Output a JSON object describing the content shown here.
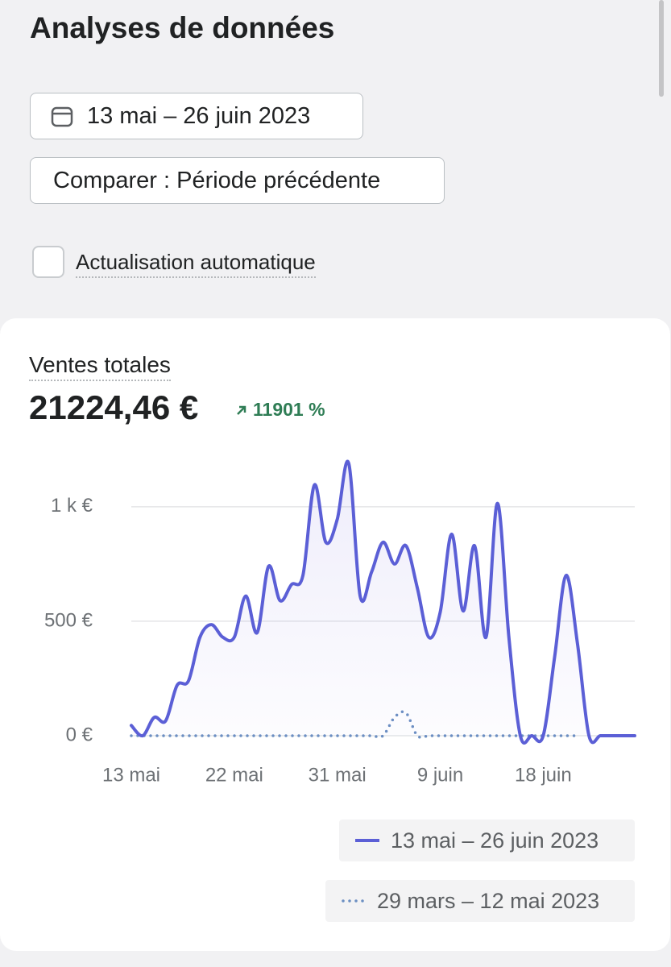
{
  "header": {
    "title": "Analyses de données"
  },
  "filters": {
    "date_range": "13 mai – 26 juin 2023",
    "compare": "Comparer : Période précédente",
    "auto_refresh": "Actualisation automatique"
  },
  "card": {
    "metric_label": "Ventes totales",
    "metric_value": "21224,46 €",
    "change": "11901 %"
  },
  "chart_data": {
    "type": "line",
    "categories": [
      "13 mai",
      null,
      null,
      null,
      null,
      null,
      null,
      null,
      null,
      "22 mai",
      null,
      null,
      null,
      null,
      null,
      null,
      null,
      null,
      "31 mai",
      null,
      null,
      null,
      null,
      null,
      null,
      null,
      null,
      "9 juin",
      null,
      null,
      null,
      null,
      null,
      null,
      null,
      null,
      "18 juin",
      null,
      null,
      null,
      null,
      null,
      null,
      null,
      null
    ],
    "series": [
      {
        "name": "13 mai – 26 juin 2023",
        "color": "#5b5fd6",
        "style": "solid",
        "values": [
          45,
          0,
          80,
          65,
          220,
          240,
          430,
          485,
          430,
          430,
          610,
          450,
          740,
          590,
          660,
          700,
          1095,
          845,
          945,
          1190,
          610,
          715,
          845,
          750,
          830,
          645,
          430,
          540,
          880,
          545,
          830,
          430,
          1015,
          430,
          0,
          0,
          0,
          345,
          700,
          400,
          0,
          0,
          0,
          0,
          0
        ]
      },
      {
        "name": "29 mars – 12 mai 2023",
        "color": "#6b8fc2",
        "style": "dotted",
        "values": [
          0,
          0,
          0,
          0,
          0,
          0,
          0,
          0,
          0,
          0,
          0,
          0,
          0,
          0,
          0,
          0,
          0,
          0,
          0,
          0,
          0,
          0,
          0,
          80,
          100,
          0,
          0,
          0,
          0,
          0,
          0,
          0,
          0,
          0,
          0,
          0,
          0,
          0,
          0,
          0,
          null,
          null,
          null,
          null,
          null
        ]
      }
    ],
    "ylim": [
      0,
      1200
    ],
    "yticks": [
      {
        "value": 0,
        "label": "0 €"
      },
      {
        "value": 500,
        "label": "500 €"
      },
      {
        "value": 1000,
        "label": "1 k €"
      }
    ],
    "grid": true
  }
}
